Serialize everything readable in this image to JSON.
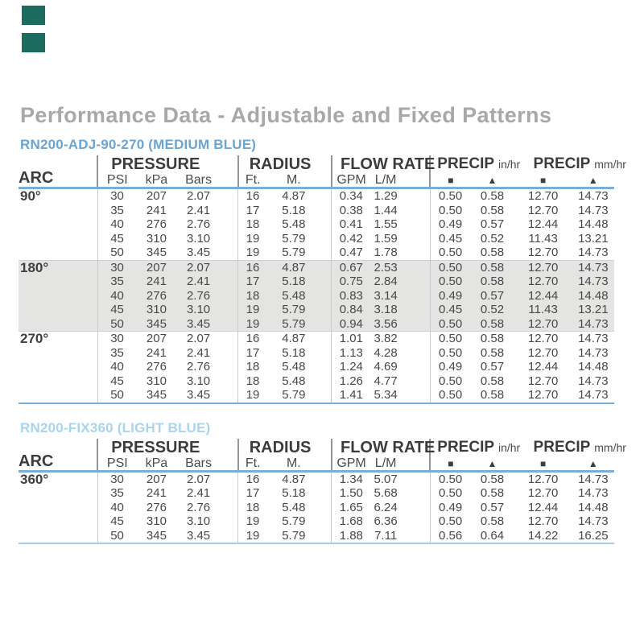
{
  "page": {
    "title": "Performance Data - Adjustable and Fixed Patterns"
  },
  "colors": {
    "title_gray": "#a8a8a8",
    "rule_blue": "#79aed6",
    "section_divider_blue": "#b9d8ea",
    "shaded_row_gray": "#e4e4e2",
    "medium_blue": "#6aa5d2",
    "light_blue": "#a8d5ec",
    "swatch_teal": "#1b6b5f"
  },
  "swatches": [
    {
      "name": "teal-swatch-top",
      "color": "#1b6b5f"
    },
    {
      "name": "teal-swatch-bottom",
      "color": "#1b6b5f"
    }
  ],
  "tables": [
    {
      "subtitle": "RN200-ADJ-90-270 (MEDIUM BLUE)",
      "subtitle_color": "#6aa5d2",
      "header": {
        "arc": "ARC",
        "groups": [
          {
            "label": "PRESSURE",
            "unit": ""
          },
          {
            "label": "RADIUS",
            "unit": ""
          },
          {
            "label": "FLOW RATE",
            "unit": ""
          },
          {
            "label": "PRECIP",
            "unit": "in/hr"
          },
          {
            "label": "PRECIP",
            "unit": "mm/hr"
          }
        ],
        "sub": [
          "PSI",
          "kPa",
          "Bars",
          "Ft.",
          "M.",
          "GPM",
          "L/M"
        ],
        "symbols": {
          "square": "■",
          "triangle": "▲"
        }
      },
      "sections": [
        {
          "arc": "90°",
          "shaded": false,
          "rows": [
            [
              "30",
              "207",
              "2.07",
              "16",
              "4.87",
              "0.34",
              "1.29",
              "0.50",
              "0.58",
              "12.70",
              "14.73"
            ],
            [
              "35",
              "241",
              "2.41",
              "17",
              "5.18",
              "0.38",
              "1.44",
              "0.50",
              "0.58",
              "12.70",
              "14.73"
            ],
            [
              "40",
              "276",
              "2.76",
              "18",
              "5.48",
              "0.41",
              "1.55",
              "0.49",
              "0.57",
              "12.44",
              "14.48"
            ],
            [
              "45",
              "310",
              "3.10",
              "19",
              "5.79",
              "0.42",
              "1.59",
              "0.45",
              "0.52",
              "11.43",
              "13.21"
            ],
            [
              "50",
              "345",
              "3.45",
              "19",
              "5.79",
              "0.47",
              "1.78",
              "0.50",
              "0.58",
              "12.70",
              "14.73"
            ]
          ]
        },
        {
          "arc": "180°",
          "shaded": true,
          "rows": [
            [
              "30",
              "207",
              "2.07",
              "16",
              "4.87",
              "0.67",
              "2.53",
              "0.50",
              "0.58",
              "12.70",
              "14.73"
            ],
            [
              "35",
              "241",
              "2.41",
              "17",
              "5.18",
              "0.75",
              "2.84",
              "0.50",
              "0.58",
              "12.70",
              "14.73"
            ],
            [
              "40",
              "276",
              "2.76",
              "18",
              "5.48",
              "0.83",
              "3.14",
              "0.49",
              "0.57",
              "12.44",
              "14.48"
            ],
            [
              "45",
              "310",
              "3.10",
              "19",
              "5.79",
              "0.84",
              "3.18",
              "0.45",
              "0.52",
              "11.43",
              "13.21"
            ],
            [
              "50",
              "345",
              "3.45",
              "19",
              "5.79",
              "0.94",
              "3.56",
              "0.50",
              "0.58",
              "12.70",
              "14.73"
            ]
          ]
        },
        {
          "arc": "270°",
          "shaded": false,
          "rows": [
            [
              "30",
              "207",
              "2.07",
              "16",
              "4.87",
              "1.01",
              "3.82",
              "0.50",
              "0.58",
              "12.70",
              "14.73"
            ],
            [
              "35",
              "241",
              "2.41",
              "17",
              "5.18",
              "1.13",
              "4.28",
              "0.50",
              "0.58",
              "12.70",
              "14.73"
            ],
            [
              "40",
              "276",
              "2.76",
              "18",
              "5.48",
              "1.24",
              "4.69",
              "0.49",
              "0.57",
              "12.44",
              "14.48"
            ],
            [
              "45",
              "310",
              "3.10",
              "18",
              "5.48",
              "1.26",
              "4.77",
              "0.50",
              "0.58",
              "12.70",
              "14.73"
            ],
            [
              "50",
              "345",
              "3.45",
              "19",
              "5.79",
              "1.41",
              "5.34",
              "0.50",
              "0.58",
              "12.70",
              "14.73"
            ]
          ]
        }
      ]
    },
    {
      "subtitle": "RN200-FIX360 (LIGHT BLUE)",
      "subtitle_color": "#a8d5ec",
      "header": {
        "arc": "ARC",
        "groups": [
          {
            "label": "PRESSURE",
            "unit": ""
          },
          {
            "label": "RADIUS",
            "unit": ""
          },
          {
            "label": "FLOW RATE",
            "unit": ""
          },
          {
            "label": "PRECIP",
            "unit": "in/hr"
          },
          {
            "label": "PRECIP",
            "unit": "mm/hr"
          }
        ],
        "sub": [
          "PSI",
          "kPa",
          "Bars",
          "Ft.",
          "M.",
          "GPM",
          "L/M"
        ],
        "symbols": {
          "square": "■",
          "triangle": "▲"
        }
      },
      "sections": [
        {
          "arc": "360°",
          "shaded": false,
          "rows": [
            [
              "30",
              "207",
              "2.07",
              "16",
              "4.87",
              "1.34",
              "5.07",
              "0.50",
              "0.58",
              "12.70",
              "14.73"
            ],
            [
              "35",
              "241",
              "2.41",
              "17",
              "5.18",
              "1.50",
              "5.68",
              "0.50",
              "0.58",
              "12.70",
              "14.73"
            ],
            [
              "40",
              "276",
              "2.76",
              "18",
              "5.48",
              "1.65",
              "6.24",
              "0.49",
              "0.57",
              "12.44",
              "14.48"
            ],
            [
              "45",
              "310",
              "3.10",
              "19",
              "5.79",
              "1.68",
              "6.36",
              "0.50",
              "0.58",
              "12.70",
              "14.73"
            ],
            [
              "50",
              "345",
              "3.45",
              "19",
              "5.79",
              "1.88",
              "7.11",
              "0.56",
              "0.64",
              "14.22",
              "16.25"
            ]
          ]
        }
      ]
    }
  ]
}
